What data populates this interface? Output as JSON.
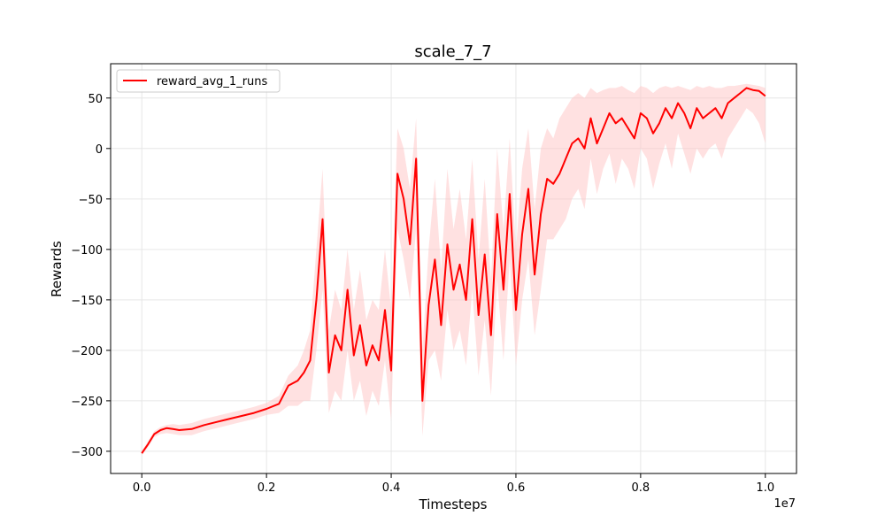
{
  "chart_data": {
    "type": "line",
    "title": "scale_7_7",
    "xlabel": "Timesteps",
    "ylabel": "Rewards",
    "x_offset_label": "1e7",
    "xlim": [
      -0.05,
      1.05
    ],
    "ylim": [
      -322,
      84
    ],
    "xticks": [
      0.0,
      0.2,
      0.4,
      0.6,
      0.8,
      1.0
    ],
    "xtick_labels": [
      "0.0",
      "0.2",
      "0.4",
      "0.6",
      "0.8",
      "1.0"
    ],
    "yticks": [
      -300,
      -250,
      -200,
      -150,
      -100,
      -50,
      0,
      50
    ],
    "ytick_labels": [
      "−300",
      "−250",
      "−200",
      "−150",
      "−100",
      "−50",
      "0",
      "50"
    ],
    "grid": true,
    "legend_position": "upper-left",
    "colors": {
      "line": "#ff0000",
      "band": "#ffc8c8"
    },
    "series": [
      {
        "name": "reward_avg_1_runs",
        "x": [
          0.0,
          0.01,
          0.02,
          0.03,
          0.04,
          0.05,
          0.06,
          0.08,
          0.1,
          0.12,
          0.14,
          0.16,
          0.18,
          0.2,
          0.22,
          0.235,
          0.25,
          0.26,
          0.27,
          0.28,
          0.29,
          0.3,
          0.31,
          0.32,
          0.33,
          0.34,
          0.35,
          0.36,
          0.37,
          0.38,
          0.39,
          0.4,
          0.41,
          0.42,
          0.43,
          0.44,
          0.45,
          0.46,
          0.47,
          0.48,
          0.49,
          0.5,
          0.51,
          0.52,
          0.53,
          0.54,
          0.55,
          0.56,
          0.57,
          0.58,
          0.59,
          0.6,
          0.61,
          0.62,
          0.63,
          0.64,
          0.65,
          0.66,
          0.67,
          0.68,
          0.69,
          0.7,
          0.71,
          0.72,
          0.73,
          0.74,
          0.75,
          0.76,
          0.77,
          0.78,
          0.79,
          0.8,
          0.81,
          0.82,
          0.83,
          0.84,
          0.85,
          0.86,
          0.87,
          0.88,
          0.89,
          0.9,
          0.91,
          0.92,
          0.93,
          0.94,
          0.95,
          0.96,
          0.97,
          0.98,
          0.99,
          1.0
        ],
        "y": [
          -302,
          -293,
          -283,
          -279,
          -277,
          -278,
          -279,
          -278,
          -274,
          -271,
          -268,
          -265,
          -262,
          -258,
          -253,
          -235,
          -230,
          -222,
          -210,
          -150,
          -70,
          -222,
          -185,
          -200,
          -140,
          -205,
          -175,
          -215,
          -195,
          -210,
          -160,
          -220,
          -25,
          -50,
          -95,
          -10,
          -250,
          -155,
          -110,
          -175,
          -95,
          -140,
          -115,
          -150,
          -70,
          -165,
          -105,
          -185,
          -65,
          -140,
          -45,
          -160,
          -85,
          -40,
          -125,
          -65,
          -30,
          -35,
          -25,
          -10,
          5,
          10,
          0,
          30,
          5,
          20,
          35,
          25,
          30,
          20,
          10,
          35,
          30,
          15,
          25,
          40,
          30,
          45,
          35,
          20,
          40,
          30,
          35,
          40,
          30,
          45,
          50,
          55,
          60,
          58,
          57,
          52
        ],
        "upper": [
          -300,
          -290,
          -280,
          -276,
          -274,
          -273,
          -274,
          -272,
          -268,
          -265,
          -262,
          -259,
          -256,
          -252,
          -245,
          -225,
          -215,
          -200,
          -180,
          -100,
          -20,
          -180,
          -140,
          -160,
          -100,
          -160,
          -120,
          -170,
          -150,
          -160,
          -100,
          -160,
          20,
          0,
          -40,
          30,
          -200,
          -100,
          -30,
          -120,
          -20,
          -80,
          -40,
          -90,
          -10,
          -110,
          -30,
          -130,
          0,
          -80,
          10,
          -100,
          -20,
          20,
          -60,
          0,
          20,
          10,
          30,
          40,
          50,
          55,
          50,
          60,
          55,
          58,
          60,
          60,
          62,
          58,
          55,
          62,
          60,
          55,
          60,
          62,
          60,
          62,
          60,
          58,
          62,
          60,
          62,
          60,
          60,
          62,
          62,
          63,
          64,
          63,
          62,
          60
        ],
        "lower": [
          -304,
          -296,
          -286,
          -283,
          -282,
          -283,
          -284,
          -284,
          -280,
          -277,
          -274,
          -271,
          -268,
          -264,
          -262,
          -255,
          -255,
          -250,
          -250,
          -200,
          -140,
          -262,
          -240,
          -250,
          -200,
          -250,
          -230,
          -265,
          -240,
          -255,
          -210,
          -270,
          -80,
          -110,
          -150,
          -80,
          -285,
          -210,
          -200,
          -230,
          -160,
          -200,
          -180,
          -215,
          -140,
          -225,
          -170,
          -245,
          -130,
          -210,
          -110,
          -215,
          -150,
          -110,
          -185,
          -140,
          -90,
          -90,
          -80,
          -70,
          -50,
          -40,
          -60,
          -10,
          -45,
          -20,
          -5,
          -35,
          -10,
          -20,
          -40,
          0,
          -10,
          -40,
          -15,
          5,
          -20,
          15,
          -5,
          -25,
          0,
          -10,
          0,
          5,
          -10,
          10,
          20,
          30,
          40,
          35,
          25,
          5
        ]
      }
    ]
  }
}
